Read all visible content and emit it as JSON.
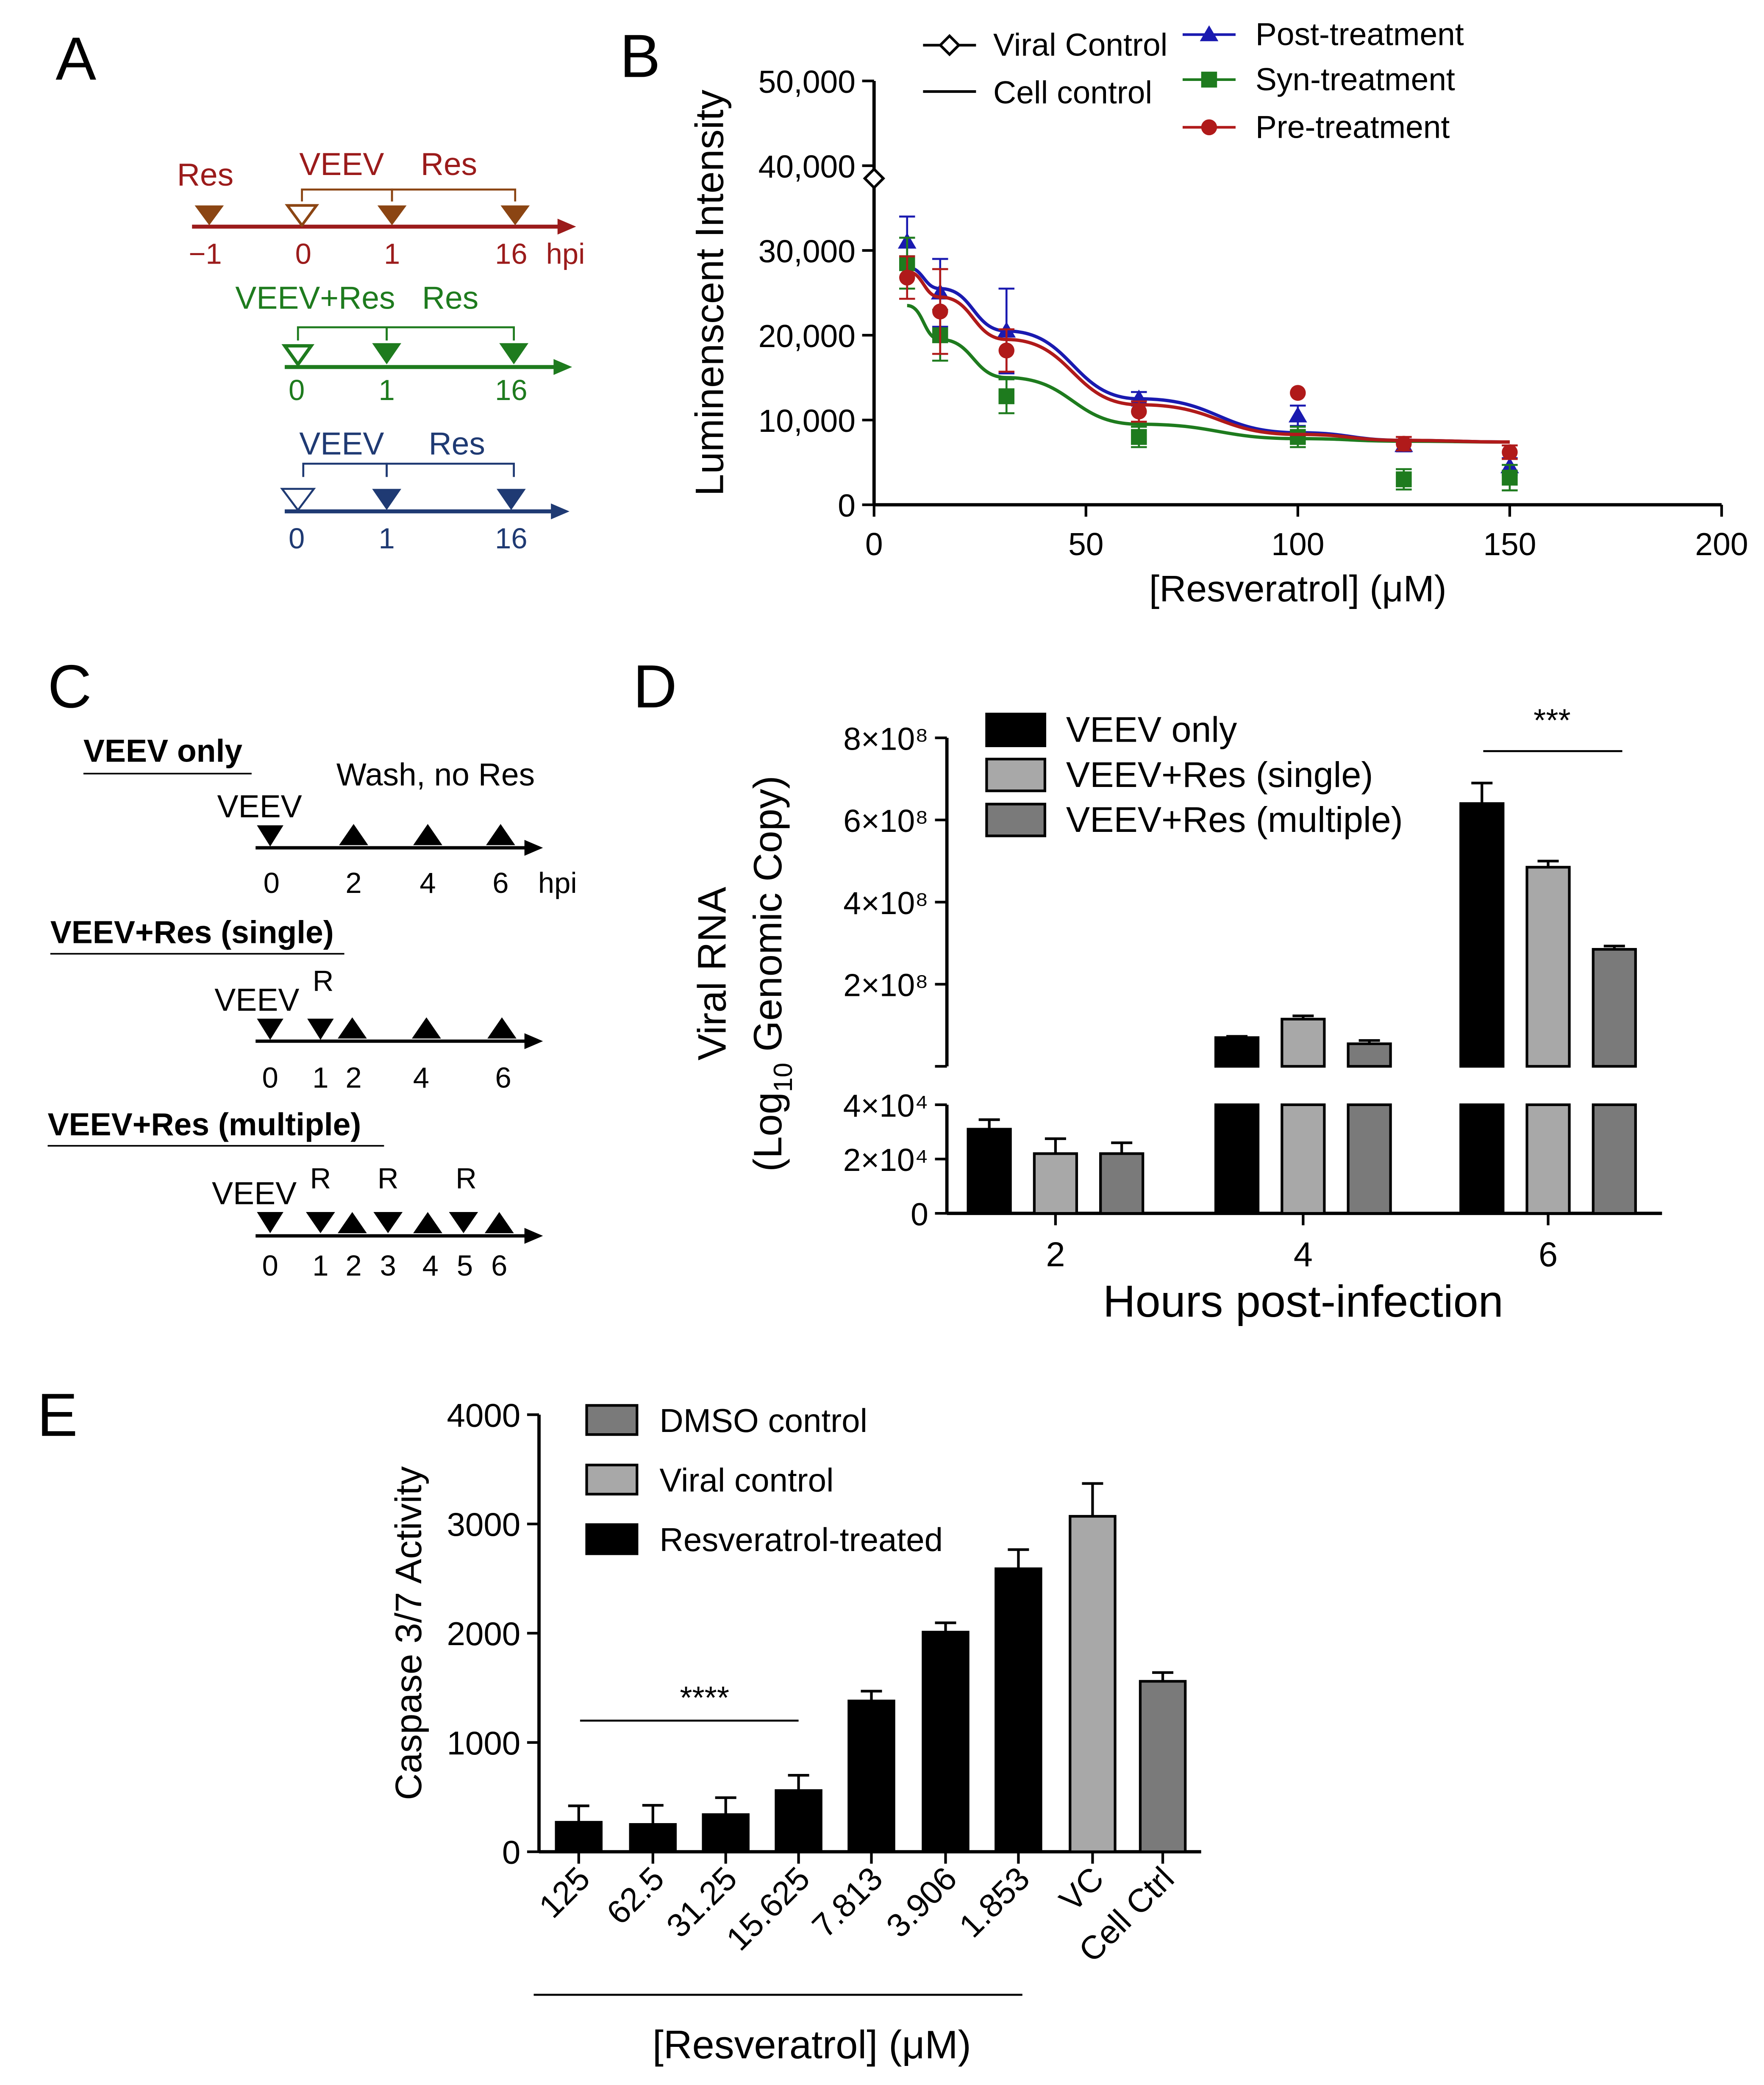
{
  "panels": {
    "a": "A",
    "b": "B",
    "c": "C",
    "d": "D",
    "e": "E"
  },
  "colors": {
    "res_brown": "#8B4513",
    "dark_red": "#9B1B1B",
    "green": "#1E7B1E",
    "navy": "#1F3A73",
    "blue": "#1A1AB0",
    "red": "#B01A1A",
    "black": "#000000",
    "light_gray": "#A8A8A8",
    "dark_gray": "#7A7A7A"
  },
  "timeline_a": {
    "row1": {
      "label_res": "Res",
      "label_veev": "VEEV",
      "label_res2": "Res",
      "ticks": [
        "−1",
        "0",
        "1",
        "16"
      ],
      "unit": "hpi"
    },
    "row2": {
      "label_veev_res": "VEEV+Res",
      "label_res": "Res",
      "ticks": [
        "0",
        "1",
        "16"
      ]
    },
    "row3": {
      "label_veev": "VEEV",
      "label_res": "Res",
      "ticks": [
        "0",
        "1",
        "16"
      ]
    }
  },
  "timeline_c": {
    "row1": {
      "title": "VEEV only",
      "note": "Wash, no Res",
      "veev": "VEEV",
      "ticks": [
        "0",
        "2",
        "4",
        "6"
      ],
      "unit": "hpi"
    },
    "row2": {
      "title": "VEEV+Res (single)",
      "veev": "VEEV",
      "r": "R",
      "ticks": [
        "0",
        "1",
        "2",
        "4",
        "6"
      ]
    },
    "row3": {
      "title": "VEEV+Res (multiple)",
      "veev": "VEEV",
      "r": [
        "R",
        "R",
        "R"
      ],
      "ticks": [
        "0",
        "1",
        "2",
        "3",
        "4",
        "5",
        "6"
      ]
    }
  },
  "chart_data": [
    {
      "panel": "B",
      "type": "scatter",
      "xlabel": "[Resveratrol] (μM)",
      "ylabel": "Luminenscent Intensity",
      "xlim": [
        0,
        200
      ],
      "ylim": [
        0,
        50000
      ],
      "xticks": [
        "0",
        "50",
        "100",
        "150",
        "200"
      ],
      "yticks": [
        "0",
        "10,000",
        "20,000",
        "30,000",
        "40,000",
        "50,000"
      ],
      "x": [
        7.8,
        15.6,
        31.25,
        62.5,
        100,
        125,
        150
      ],
      "series": [
        {
          "name": "Post-treatment",
          "values": [
            31000,
            25000,
            20500,
            12500,
            10500,
            7000,
            4500
          ],
          "errors": [
            3000,
            4000,
            5000,
            800,
            1200,
            700,
            1000
          ],
          "fit": [
            28000,
            25500,
            20500,
            12500,
            8500,
            7600,
            7400
          ]
        },
        {
          "name": "Syn-treatment",
          "values": [
            28500,
            20000,
            12800,
            8000,
            8000,
            3000,
            3200
          ],
          "errors": [
            3000,
            3000,
            2000,
            1200,
            1200,
            1200,
            1500
          ],
          "fit": [
            23500,
            19500,
            15000,
            9500,
            7800,
            7500,
            7400
          ]
        },
        {
          "name": "Pre-treatment",
          "values": [
            26800,
            22800,
            18200,
            11000,
            13200,
            7200,
            6200
          ],
          "errors": [
            2500,
            5000,
            2500,
            1200,
            0,
            800,
            800
          ],
          "fit": [
            27500,
            24500,
            19500,
            11800,
            8300,
            7600,
            7400
          ]
        }
      ],
      "viral_control": {
        "name": "Viral Control",
        "x": 0,
        "value": 38500,
        "error": 1500
      },
      "cell_control": {
        "name": "Cell control"
      }
    },
    {
      "panel": "D",
      "type": "bar",
      "xlabel": "Hours post-infection",
      "ylabel_line1": "Viral RNA",
      "ylabel_line2": "(Log",
      "ylabel_sub": "10",
      "ylabel_tail": " Genomic Copy)",
      "categories": [
        "2",
        "4",
        "6"
      ],
      "yticks_upper": [
        "2×10⁸",
        "4×10⁸",
        "6×10⁸",
        "8×10⁸"
      ],
      "yticks_lower": [
        "0",
        "2×10⁴",
        "4×10⁴"
      ],
      "series": [
        {
          "name": "VEEV only",
          "values": [
            31000,
            70000000,
            640000000
          ],
          "errors": [
            3500,
            3000000,
            50000000
          ]
        },
        {
          "name": "VEEV+Res (single)",
          "values": [
            22000,
            115000000,
            485000000
          ],
          "errors": [
            5500,
            8000000,
            15000000
          ]
        },
        {
          "name": "VEEV+Res (multiple)",
          "values": [
            22000,
            55000000,
            285000000
          ],
          "errors": [
            4000,
            8000000,
            8000000
          ]
        }
      ],
      "significance": "***"
    },
    {
      "panel": "E",
      "type": "bar",
      "xlabel": "[Resveratrol] (μM)",
      "ylabel": "Caspase 3/7 Activity",
      "ylim": [
        0,
        4000
      ],
      "yticks": [
        "0",
        "1000",
        "2000",
        "3000",
        "4000"
      ],
      "categories": [
        "125",
        "62.5",
        "31.25",
        "15.625",
        "7.813",
        "3.906",
        "1.853",
        "VC",
        "Cell Ctrl"
      ],
      "values": [
        270,
        250,
        340,
        560,
        1380,
        2010,
        2590,
        3070,
        1560
      ],
      "errors": [
        150,
        175,
        155,
        140,
        90,
        85,
        175,
        300,
        80
      ],
      "groups": [
        "Resveratrol-treated",
        "Resveratrol-treated",
        "Resveratrol-treated",
        "Resveratrol-treated",
        "Resveratrol-treated",
        "Resveratrol-treated",
        "Resveratrol-treated",
        "Viral control",
        "DMSO control"
      ],
      "legend": [
        "DMSO control",
        "Viral control",
        "Resveratrol-treated"
      ],
      "significance": "****"
    }
  ]
}
